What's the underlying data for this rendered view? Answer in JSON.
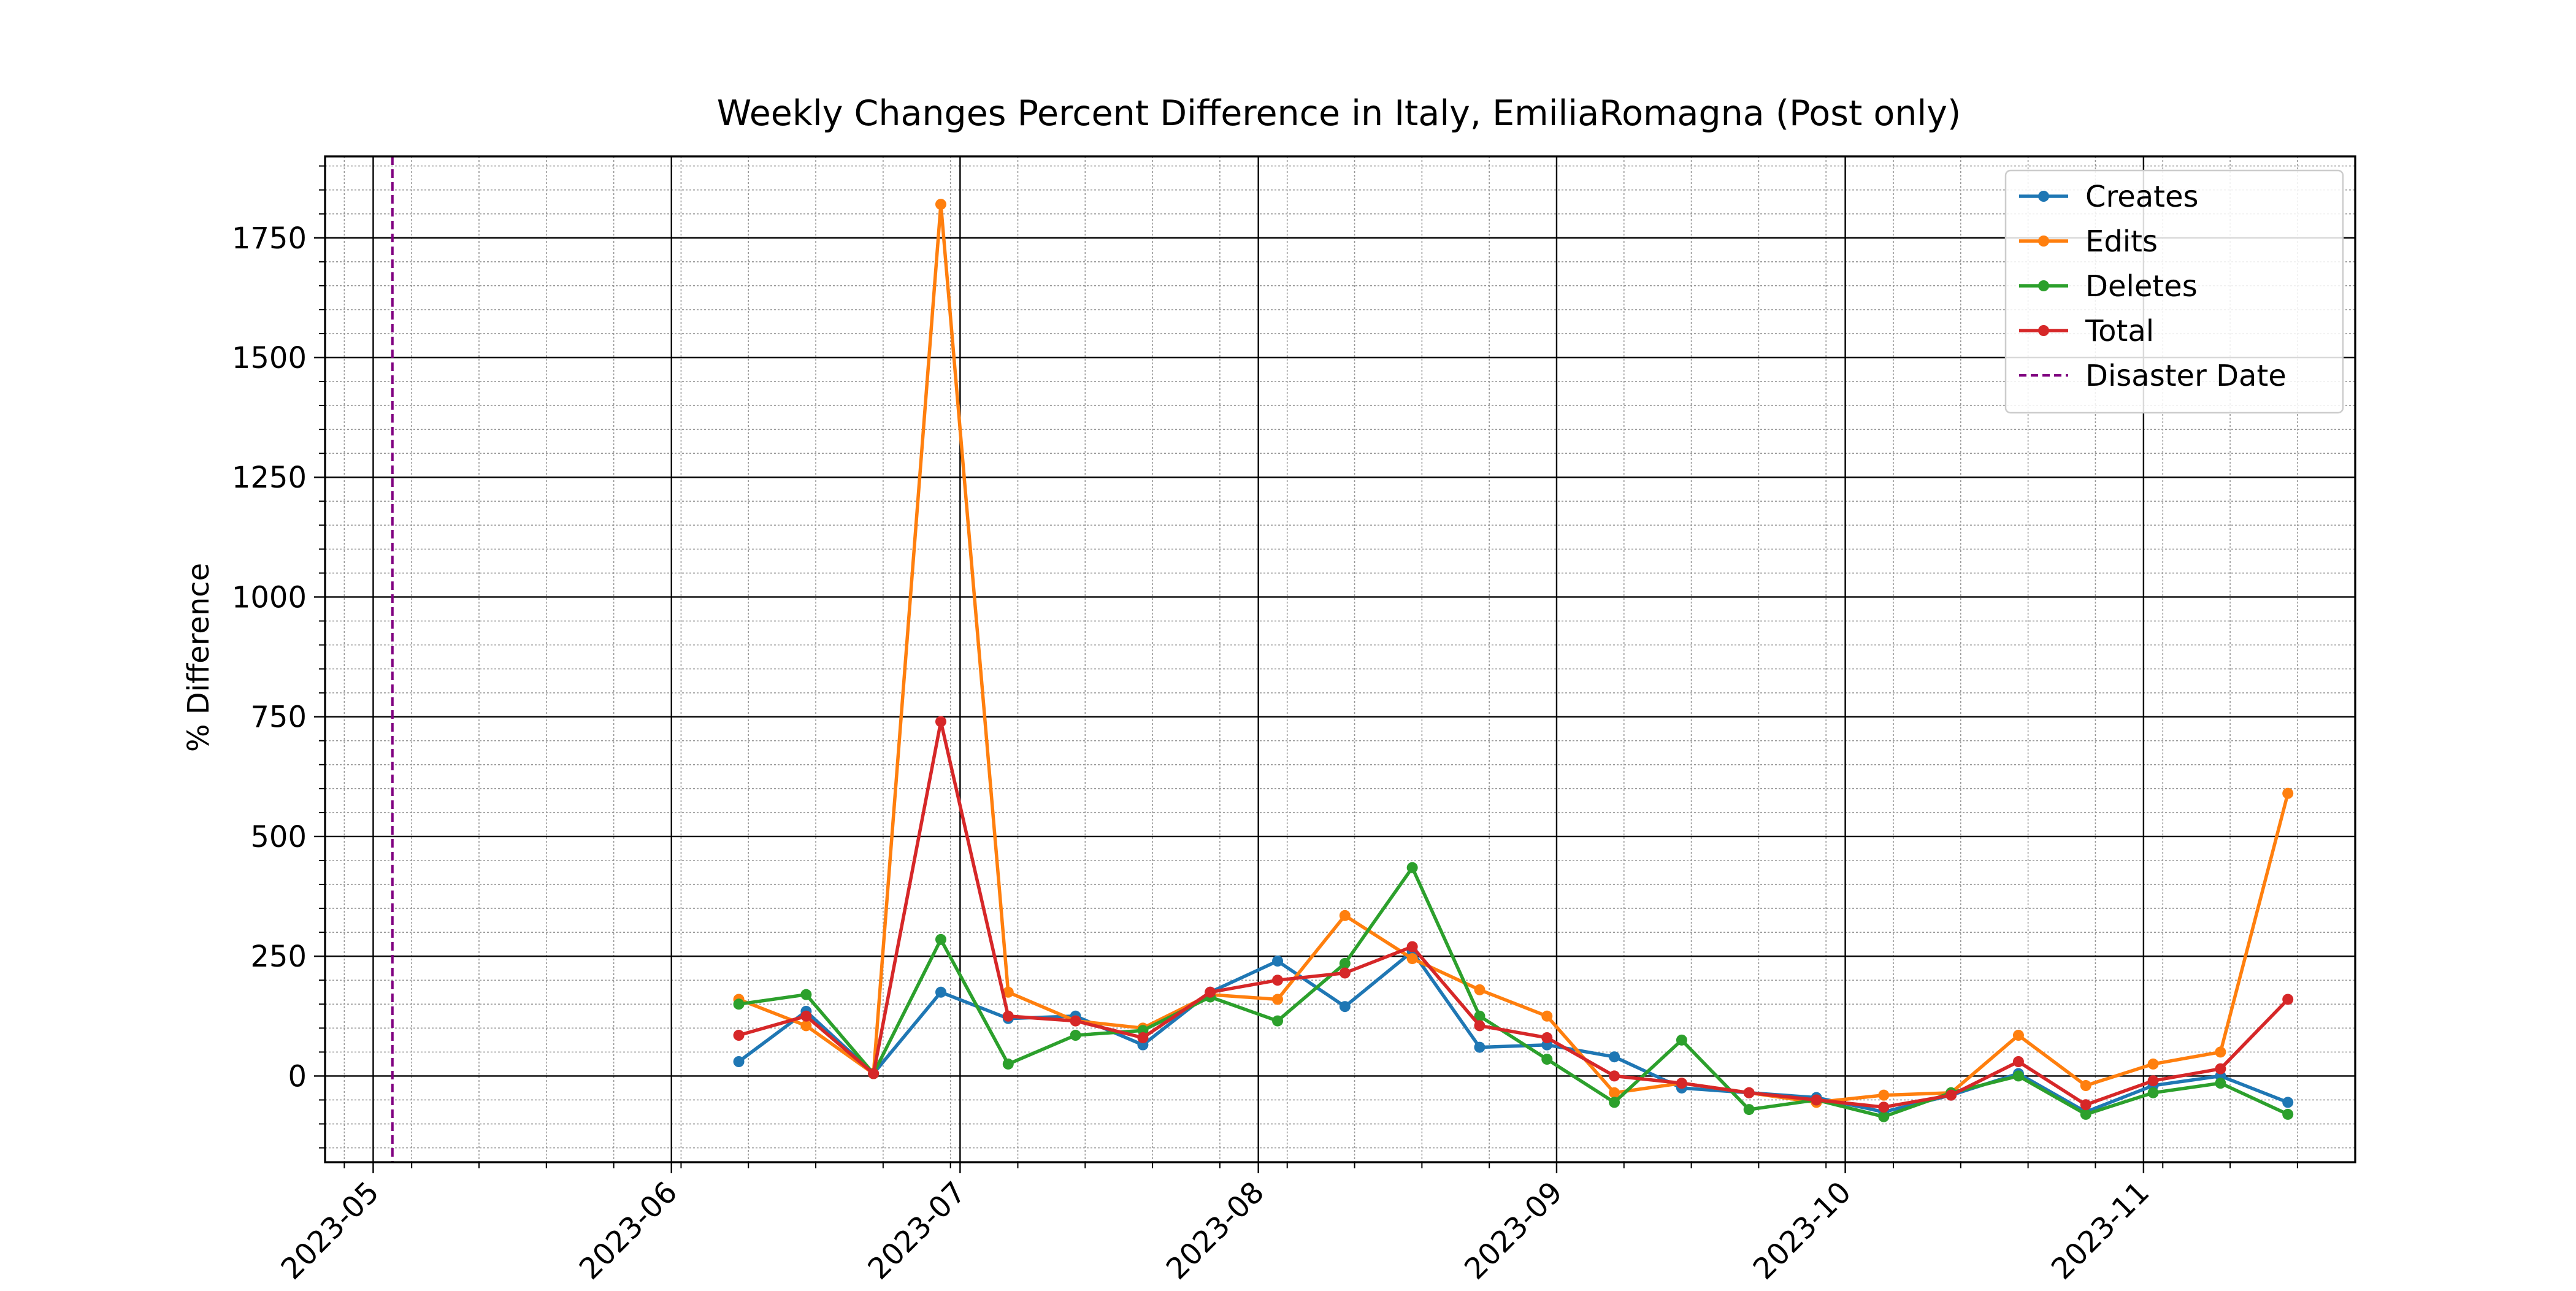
{
  "chart_data": {
    "type": "line",
    "title": "Weekly Changes Percent Difference in Italy, EmiliaRomagna (Post only)",
    "xlabel": "",
    "ylabel": "% Difference",
    "x_is_date": true,
    "xlim": [
      "2023-04-26",
      "2023-11-23"
    ],
    "ylim": [
      -180,
      1920
    ],
    "x_tick_labels": [
      "2023-05",
      "2023-06",
      "2023-07",
      "2023-08",
      "2023-09",
      "2023-10",
      "2023-11"
    ],
    "y_ticks": [
      0,
      250,
      500,
      750,
      1000,
      1250,
      1500,
      1750
    ],
    "y_tick_labels": [
      "0",
      "250",
      "500",
      "750",
      "1000",
      "1250",
      "1500",
      "1750"
    ],
    "grid": true,
    "legend_position": "top-right",
    "x": [
      "2023-06-08",
      "2023-06-15",
      "2023-06-22",
      "2023-06-29",
      "2023-07-06",
      "2023-07-13",
      "2023-07-20",
      "2023-07-27",
      "2023-08-03",
      "2023-08-10",
      "2023-08-17",
      "2023-08-24",
      "2023-08-31",
      "2023-09-07",
      "2023-09-14",
      "2023-09-21",
      "2023-09-28",
      "2023-10-05",
      "2023-10-12",
      "2023-10-19",
      "2023-10-26",
      "2023-11-02",
      "2023-11-09",
      "2023-11-16"
    ],
    "series": [
      {
        "name": "Creates",
        "color": "#1f77b4",
        "values": [
          30,
          135,
          5,
          175,
          120,
          125,
          65,
          175,
          240,
          145,
          260,
          60,
          65,
          40,
          -25,
          -35,
          -45,
          -75,
          -40,
          5,
          -75,
          -20,
          0,
          -55
        ]
      },
      {
        "name": "Edits",
        "color": "#ff7f0e",
        "values": [
          160,
          105,
          5,
          1820,
          175,
          115,
          100,
          170,
          160,
          335,
          245,
          180,
          125,
          -35,
          -15,
          -35,
          -55,
          -40,
          -35,
          85,
          -20,
          25,
          50,
          590
        ]
      },
      {
        "name": "Deletes",
        "color": "#2ca02c",
        "values": [
          150,
          170,
          5,
          285,
          25,
          85,
          95,
          165,
          115,
          235,
          435,
          125,
          35,
          -55,
          75,
          -70,
          -50,
          -85,
          -35,
          0,
          -80,
          -35,
          -15,
          -80
        ]
      },
      {
        "name": "Total",
        "color": "#d62728",
        "values": [
          85,
          125,
          5,
          740,
          125,
          115,
          80,
          175,
          200,
          215,
          270,
          105,
          80,
          0,
          -15,
          -35,
          -50,
          -65,
          -40,
          30,
          -60,
          -10,
          15,
          160
        ]
      }
    ],
    "reference_lines": [
      {
        "name": "Disaster Date",
        "x": "2023-05-03",
        "color": "#800080",
        "style": "dashed"
      }
    ]
  }
}
